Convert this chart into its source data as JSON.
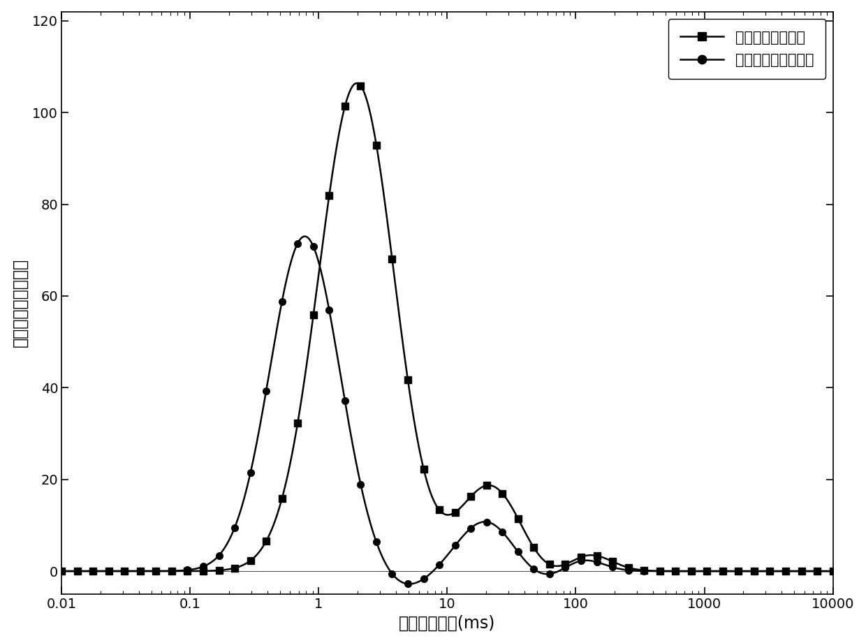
{
  "xlabel": "横向弛豫时间(ms)",
  "ylabel": "信号强度（无量纲）",
  "ylim": [
    -5,
    122
  ],
  "yticks": [
    0,
    20,
    40,
    60,
    80,
    100,
    120
  ],
  "legend1": "未经干燥松木试样",
  "legend2": "真空干燥后松木试样",
  "line_color": "#000000",
  "background_color": "#ffffff",
  "label_fontsize": 17,
  "legend_fontsize": 15,
  "tick_fontsize": 14,
  "curve1_peaks": [
    [
      107,
      2.0,
      0.3
    ],
    [
      -4.5,
      5.5,
      0.22
    ],
    [
      19,
      22,
      0.25
    ],
    [
      -3.5,
      60,
      0.22
    ],
    [
      4.5,
      120,
      0.18
    ]
  ],
  "curve2_peaks": [
    [
      73,
      0.78,
      0.27
    ],
    [
      -4.0,
      4.5,
      0.2
    ],
    [
      11,
      20,
      0.22
    ],
    [
      -2.5,
      55,
      0.2
    ],
    [
      3.0,
      110,
      0.16
    ]
  ],
  "num_markers": 50
}
